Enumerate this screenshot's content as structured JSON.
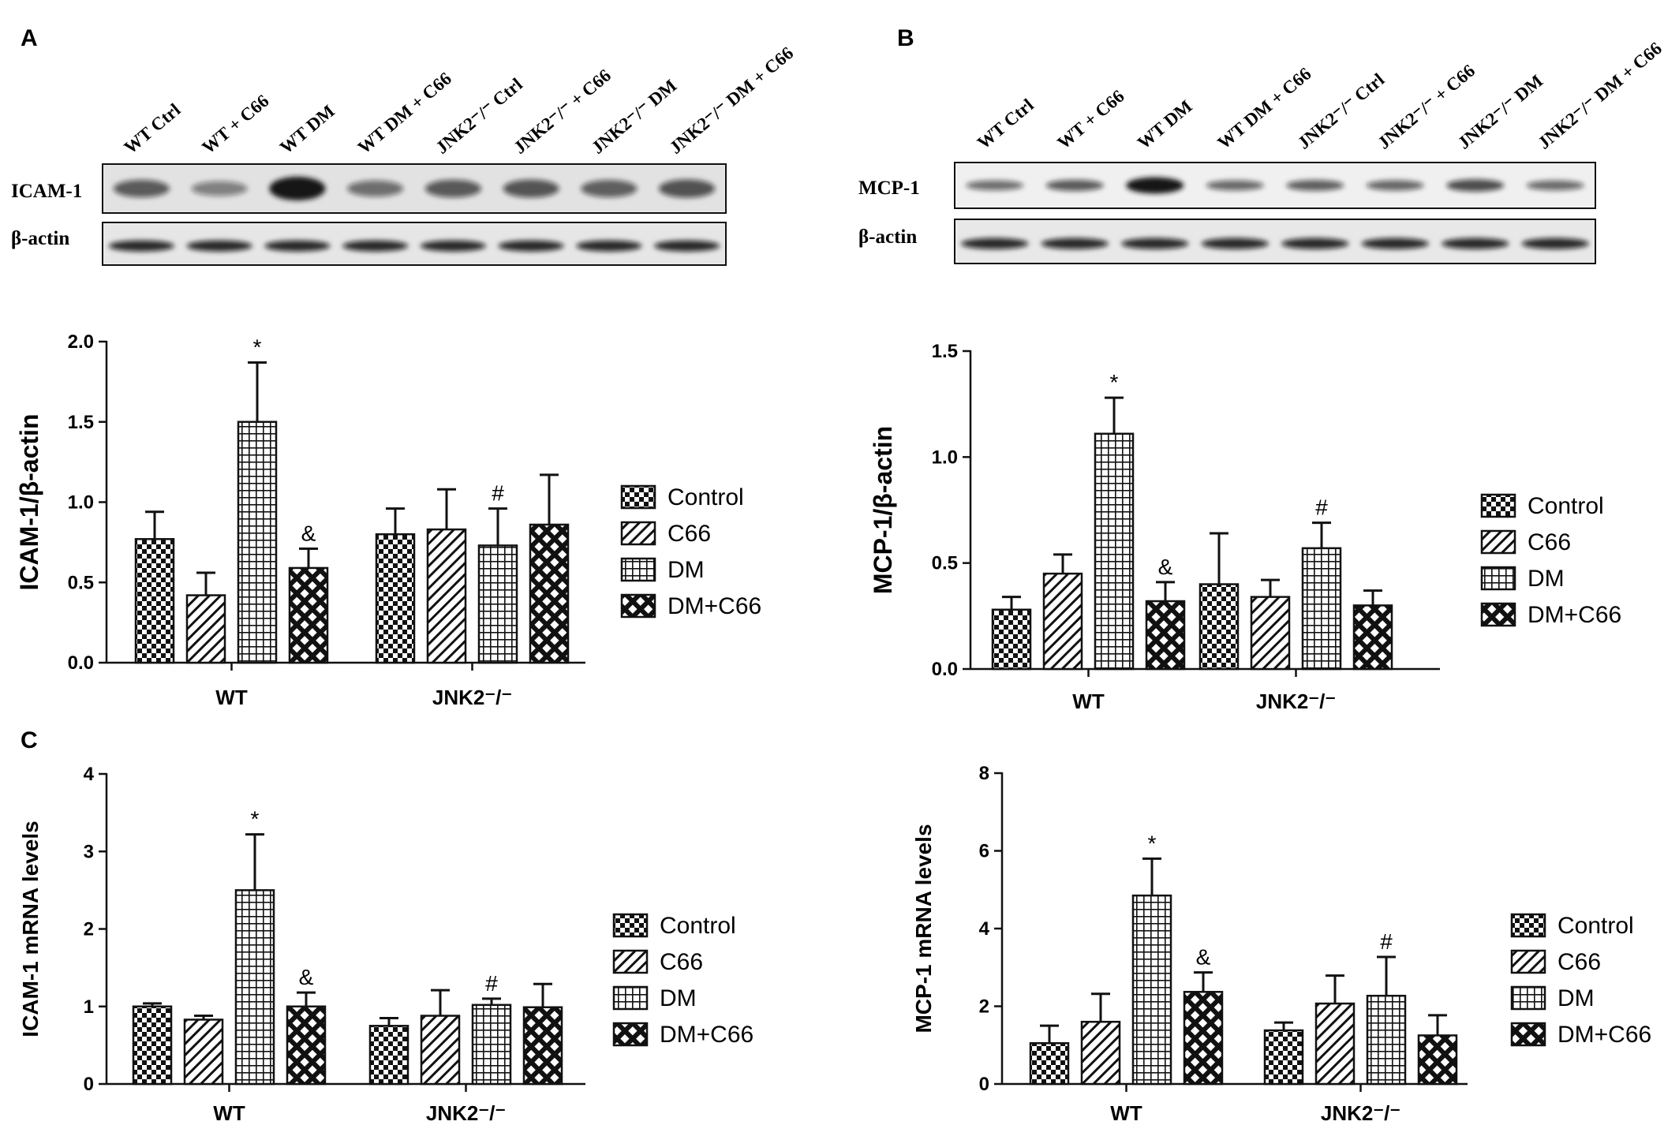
{
  "panel_labels": {
    "a": "A",
    "b": "B",
    "c": "C"
  },
  "blot_a": {
    "lanes": [
      "WT Ctrl",
      "WT + C66",
      "WT DM",
      "WT DM + C66",
      "JNK2⁻/⁻ Ctrl",
      "JNK2⁻/⁻ + C66",
      "JNK2⁻/⁻  DM",
      "JNK2⁻/⁻  DM + C66"
    ],
    "row_labels": [
      "ICAM-1",
      "β-actin"
    ],
    "band_intensity": [
      0.77,
      0.42,
      1.5,
      0.59,
      0.8,
      0.83,
      0.73,
      0.86
    ]
  },
  "blot_b": {
    "lanes": [
      "WT Ctrl",
      "WT + C66",
      "WT DM",
      "WT DM + C66",
      "JNK2⁻/⁻ Ctrl",
      "JNK2⁻/⁻ + C66",
      "JNK2⁻/⁻  DM",
      "JNK2⁻/⁻  DM + C66"
    ],
    "row_labels": [
      "MCP-1",
      "β-actin"
    ],
    "band_intensity": [
      0.28,
      0.45,
      1.11,
      0.32,
      0.4,
      0.34,
      0.57,
      0.3
    ]
  },
  "legend": [
    "Control",
    "C66",
    "DM",
    "DM+C66"
  ],
  "chart_data": [
    {
      "type": "bar",
      "ylabel": "ICAM-1/β-actin",
      "ylim": [
        0,
        2.0
      ],
      "ticks": [
        "0.0",
        "0.5",
        "1.0",
        "1.5",
        "2.0"
      ],
      "categories": [
        "WT",
        "JNK2⁻/⁻"
      ],
      "series": [
        {
          "name": "Control",
          "values": [
            0.77,
            0.8
          ],
          "errors": [
            0.17,
            0.16
          ]
        },
        {
          "name": "C66",
          "values": [
            0.42,
            0.83
          ],
          "errors": [
            0.14,
            0.25
          ]
        },
        {
          "name": "DM",
          "values": [
            1.5,
            0.73
          ],
          "errors": [
            0.37,
            0.23
          ]
        },
        {
          "name": "DM+C66",
          "values": [
            0.59,
            0.86
          ],
          "errors": [
            0.12,
            0.31
          ]
        }
      ],
      "annotations": [
        {
          "group": 0,
          "series": 2,
          "text": "*"
        },
        {
          "group": 0,
          "series": 3,
          "text": "&"
        },
        {
          "group": 1,
          "series": 2,
          "text": "#"
        }
      ]
    },
    {
      "type": "bar",
      "ylabel": "MCP-1/β-actin",
      "ylim": [
        0,
        1.5
      ],
      "ticks": [
        "0.0",
        "0.5",
        "1.0",
        "1.5"
      ],
      "categories": [
        "WT",
        "JNK2⁻/⁻"
      ],
      "series": [
        {
          "name": "Control",
          "values": [
            0.28,
            0.4
          ],
          "errors": [
            0.06,
            0.24
          ]
        },
        {
          "name": "C66",
          "values": [
            0.45,
            0.34
          ],
          "errors": [
            0.09,
            0.08
          ]
        },
        {
          "name": "DM",
          "values": [
            1.11,
            0.57
          ],
          "errors": [
            0.17,
            0.12
          ]
        },
        {
          "name": "DM+C66",
          "values": [
            0.32,
            0.3
          ],
          "errors": [
            0.09,
            0.07
          ]
        }
      ],
      "annotations": [
        {
          "group": 0,
          "series": 2,
          "text": "*"
        },
        {
          "group": 0,
          "series": 3,
          "text": "&"
        },
        {
          "group": 1,
          "series": 2,
          "text": "#"
        }
      ]
    },
    {
      "type": "bar",
      "ylabel": "ICAM-1 mRNA levels",
      "ylim": [
        0,
        4
      ],
      "ticks": [
        "0",
        "1",
        "2",
        "3",
        "4"
      ],
      "categories": [
        "WT",
        "JNK2⁻/⁻"
      ],
      "series": [
        {
          "name": "Control",
          "values": [
            1.0,
            0.75
          ],
          "errors": [
            0.04,
            0.1
          ]
        },
        {
          "name": "C66",
          "values": [
            0.83,
            0.88
          ],
          "errors": [
            0.05,
            0.33
          ]
        },
        {
          "name": "DM",
          "values": [
            2.5,
            1.02
          ],
          "errors": [
            0.72,
            0.08
          ]
        },
        {
          "name": "DM+C66",
          "values": [
            1.0,
            0.99
          ],
          "errors": [
            0.18,
            0.3
          ]
        }
      ],
      "annotations": [
        {
          "group": 0,
          "series": 2,
          "text": "*"
        },
        {
          "group": 0,
          "series": 3,
          "text": "&"
        },
        {
          "group": 1,
          "series": 2,
          "text": "#"
        }
      ]
    },
    {
      "type": "bar",
      "ylabel": "MCP-1 mRNA levels",
      "ylim": [
        0,
        8
      ],
      "ticks": [
        "0",
        "2",
        "4",
        "6",
        "8"
      ],
      "categories": [
        "WT",
        "JNK2⁻/⁻"
      ],
      "series": [
        {
          "name": "Control",
          "values": [
            1.05,
            1.38
          ],
          "errors": [
            0.45,
            0.2
          ]
        },
        {
          "name": "C66",
          "values": [
            1.6,
            2.07
          ],
          "errors": [
            0.72,
            0.72
          ]
        },
        {
          "name": "DM",
          "values": [
            4.85,
            2.27
          ],
          "errors": [
            0.95,
            1.0
          ]
        },
        {
          "name": "DM+C66",
          "values": [
            2.37,
            1.25
          ],
          "errors": [
            0.5,
            0.52
          ]
        }
      ],
      "annotations": [
        {
          "group": 0,
          "series": 2,
          "text": "*"
        },
        {
          "group": 0,
          "series": 3,
          "text": "&"
        },
        {
          "group": 1,
          "series": 2,
          "text": "#"
        }
      ]
    }
  ]
}
